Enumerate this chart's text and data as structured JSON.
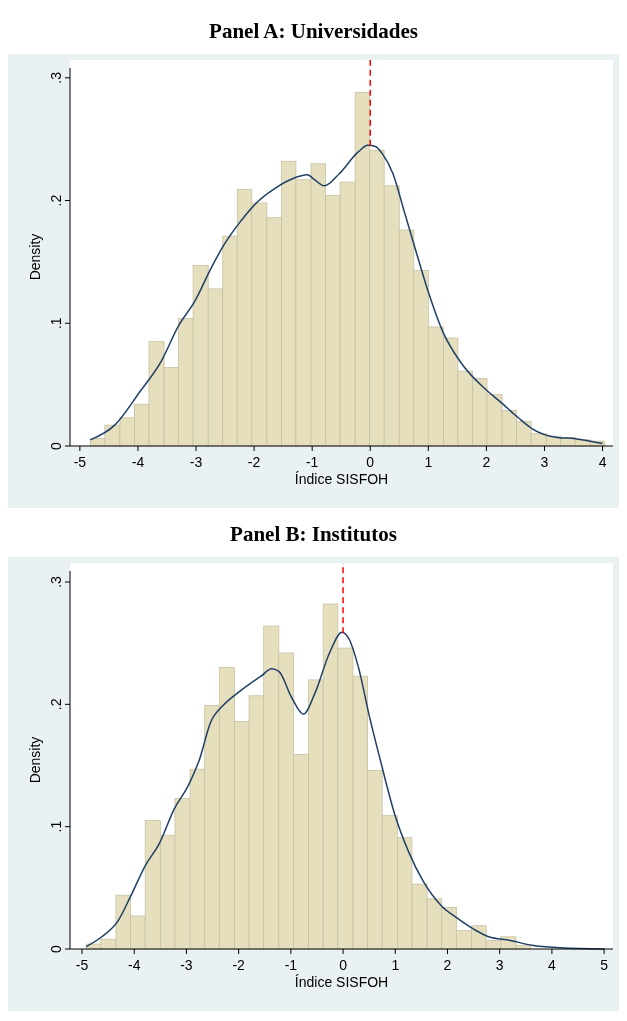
{
  "chart_data": [
    {
      "type": "histogram",
      "title": "Panel A: Universidades",
      "xlabel": "Índice SISFOH",
      "ylabel": "Density",
      "color": "#e6dfbd",
      "bins": [
        -4.82,
        -4.57,
        -4.31,
        -4.06,
        -3.81,
        -3.55,
        -3.3,
        -3.05,
        -2.79,
        -2.54,
        -2.29,
        -2.04,
        -1.78,
        -1.53,
        -1.28,
        -1.02,
        -0.77,
        -0.52,
        -0.26,
        -0.01,
        0.24,
        0.5,
        0.75,
        1.0,
        1.26,
        1.51,
        1.76,
        2.01,
        2.27,
        2.52,
        2.77,
        3.03,
        3.28,
        3.53,
        3.79,
        4.04
      ],
      "values": [
        0.006,
        0.017,
        0.023,
        0.034,
        0.085,
        0.064,
        0.104,
        0.147,
        0.128,
        0.171,
        0.209,
        0.198,
        0.186,
        0.232,
        0.217,
        0.23,
        0.204,
        0.215,
        0.288,
        0.241,
        0.212,
        0.176,
        0.143,
        0.097,
        0.088,
        0.061,
        0.055,
        0.042,
        0.029,
        0.02,
        0.01,
        0.008,
        0.007,
        0.005,
        0.004
      ],
      "series": [
        {
          "type": "line",
          "color": "#1f3f66",
          "x": [
            -4.82,
            -4.4,
            -3.97,
            -3.6,
            -3.3,
            -3.02,
            -2.74,
            -2.53,
            -2.25,
            -1.94,
            -1.64,
            -1.33,
            -1.08,
            -0.96,
            -0.79,
            -0.53,
            -0.22,
            -0.04,
            0.09,
            0.21,
            0.39,
            0.58,
            0.76,
            1.01,
            1.25,
            1.56,
            1.99,
            2.24,
            2.55,
            2.79,
            3.22,
            3.53,
            4.0
          ],
          "values": [
            0.005,
            0.017,
            0.044,
            0.069,
            0.098,
            0.118,
            0.145,
            0.163,
            0.182,
            0.199,
            0.21,
            0.218,
            0.221,
            0.217,
            0.212,
            0.222,
            0.239,
            0.245,
            0.244,
            0.238,
            0.222,
            0.192,
            0.163,
            0.124,
            0.093,
            0.068,
            0.046,
            0.036,
            0.023,
            0.014,
            0.007,
            0.006,
            0.002
          ]
        }
      ],
      "ref_lines": [
        {
          "axis": "x",
          "value": 0,
          "color": "#ff0000",
          "line_style": "dashed"
        }
      ],
      "xlim": [
        -5.17,
        4.18
      ],
      "xticks": [
        -5,
        -4,
        -3,
        -2,
        -1,
        0,
        1,
        2,
        3,
        4
      ],
      "ylim": [
        0,
        0.308
      ],
      "yticks": [
        0,
        {
          "value": 0.1,
          "label": ".1"
        },
        {
          "value": 0.2,
          "label": ".2"
        },
        {
          "value": 0.3,
          "label": ".3"
        }
      ],
      "grid": false
    },
    {
      "type": "histogram",
      "title": "Panel B: Institutos",
      "xlabel": "Índice SISFOH",
      "ylabel": "Density",
      "color": "#e6dfbd",
      "bins": [
        -4.92,
        -4.64,
        -4.35,
        -4.07,
        -3.79,
        -3.5,
        -3.22,
        -2.93,
        -2.65,
        -2.37,
        -2.08,
        -1.8,
        -1.52,
        -1.23,
        -0.95,
        -0.66,
        -0.38,
        -0.1,
        0.19,
        0.47,
        0.75,
        1.04,
        1.32,
        1.61,
        1.89,
        2.17,
        2.46,
        2.74,
        3.02,
        3.31,
        3.59
      ],
      "values": [
        0.004,
        0.008,
        0.044,
        0.027,
        0.105,
        0.093,
        0.123,
        0.147,
        0.199,
        0.23,
        0.186,
        0.207,
        0.264,
        0.242,
        0.159,
        0.22,
        0.282,
        0.246,
        0.223,
        0.146,
        0.109,
        0.091,
        0.053,
        0.041,
        0.034,
        0.015,
        0.019,
        0.007,
        0.01,
        0.003
      ],
      "series": [
        {
          "type": "line",
          "color": "#1f3f66",
          "x": [
            -4.92,
            -4.62,
            -4.31,
            -4.07,
            -3.79,
            -3.51,
            -3.24,
            -2.96,
            -2.75,
            -2.54,
            -2.3,
            -2.06,
            -1.78,
            -1.57,
            -1.37,
            -1.23,
            -0.99,
            -0.76,
            -0.54,
            -0.26,
            -0.02,
            0.12,
            0.29,
            0.5,
            0.71,
            0.99,
            1.26,
            1.54,
            1.89,
            2.16,
            2.51,
            2.79,
            3.2,
            3.62,
            4.17,
            5.0
          ],
          "values": [
            0.002,
            0.01,
            0.023,
            0.043,
            0.068,
            0.087,
            0.114,
            0.134,
            0.155,
            0.185,
            0.199,
            0.208,
            0.217,
            0.223,
            0.229,
            0.227,
            0.206,
            0.192,
            0.209,
            0.242,
            0.259,
            0.253,
            0.231,
            0.191,
            0.155,
            0.11,
            0.079,
            0.055,
            0.035,
            0.026,
            0.016,
            0.01,
            0.007,
            0.003,
            0.001,
            0.0
          ]
        }
      ],
      "ref_lines": [
        {
          "axis": "x",
          "value": 0,
          "color": "#ff0000",
          "line_style": "dashed"
        }
      ],
      "xlim": [
        -5.23,
        5.17
      ],
      "xticks": [
        -5,
        -4,
        -3,
        -2,
        -1,
        0,
        1,
        2,
        3,
        4,
        5
      ],
      "ylim": [
        0,
        0.309
      ],
      "yticks": [
        0,
        {
          "value": 0.1,
          "label": ".1"
        },
        {
          "value": 0.2,
          "label": ".2"
        },
        {
          "value": 0.3,
          "label": ".3"
        }
      ],
      "grid": false
    }
  ]
}
